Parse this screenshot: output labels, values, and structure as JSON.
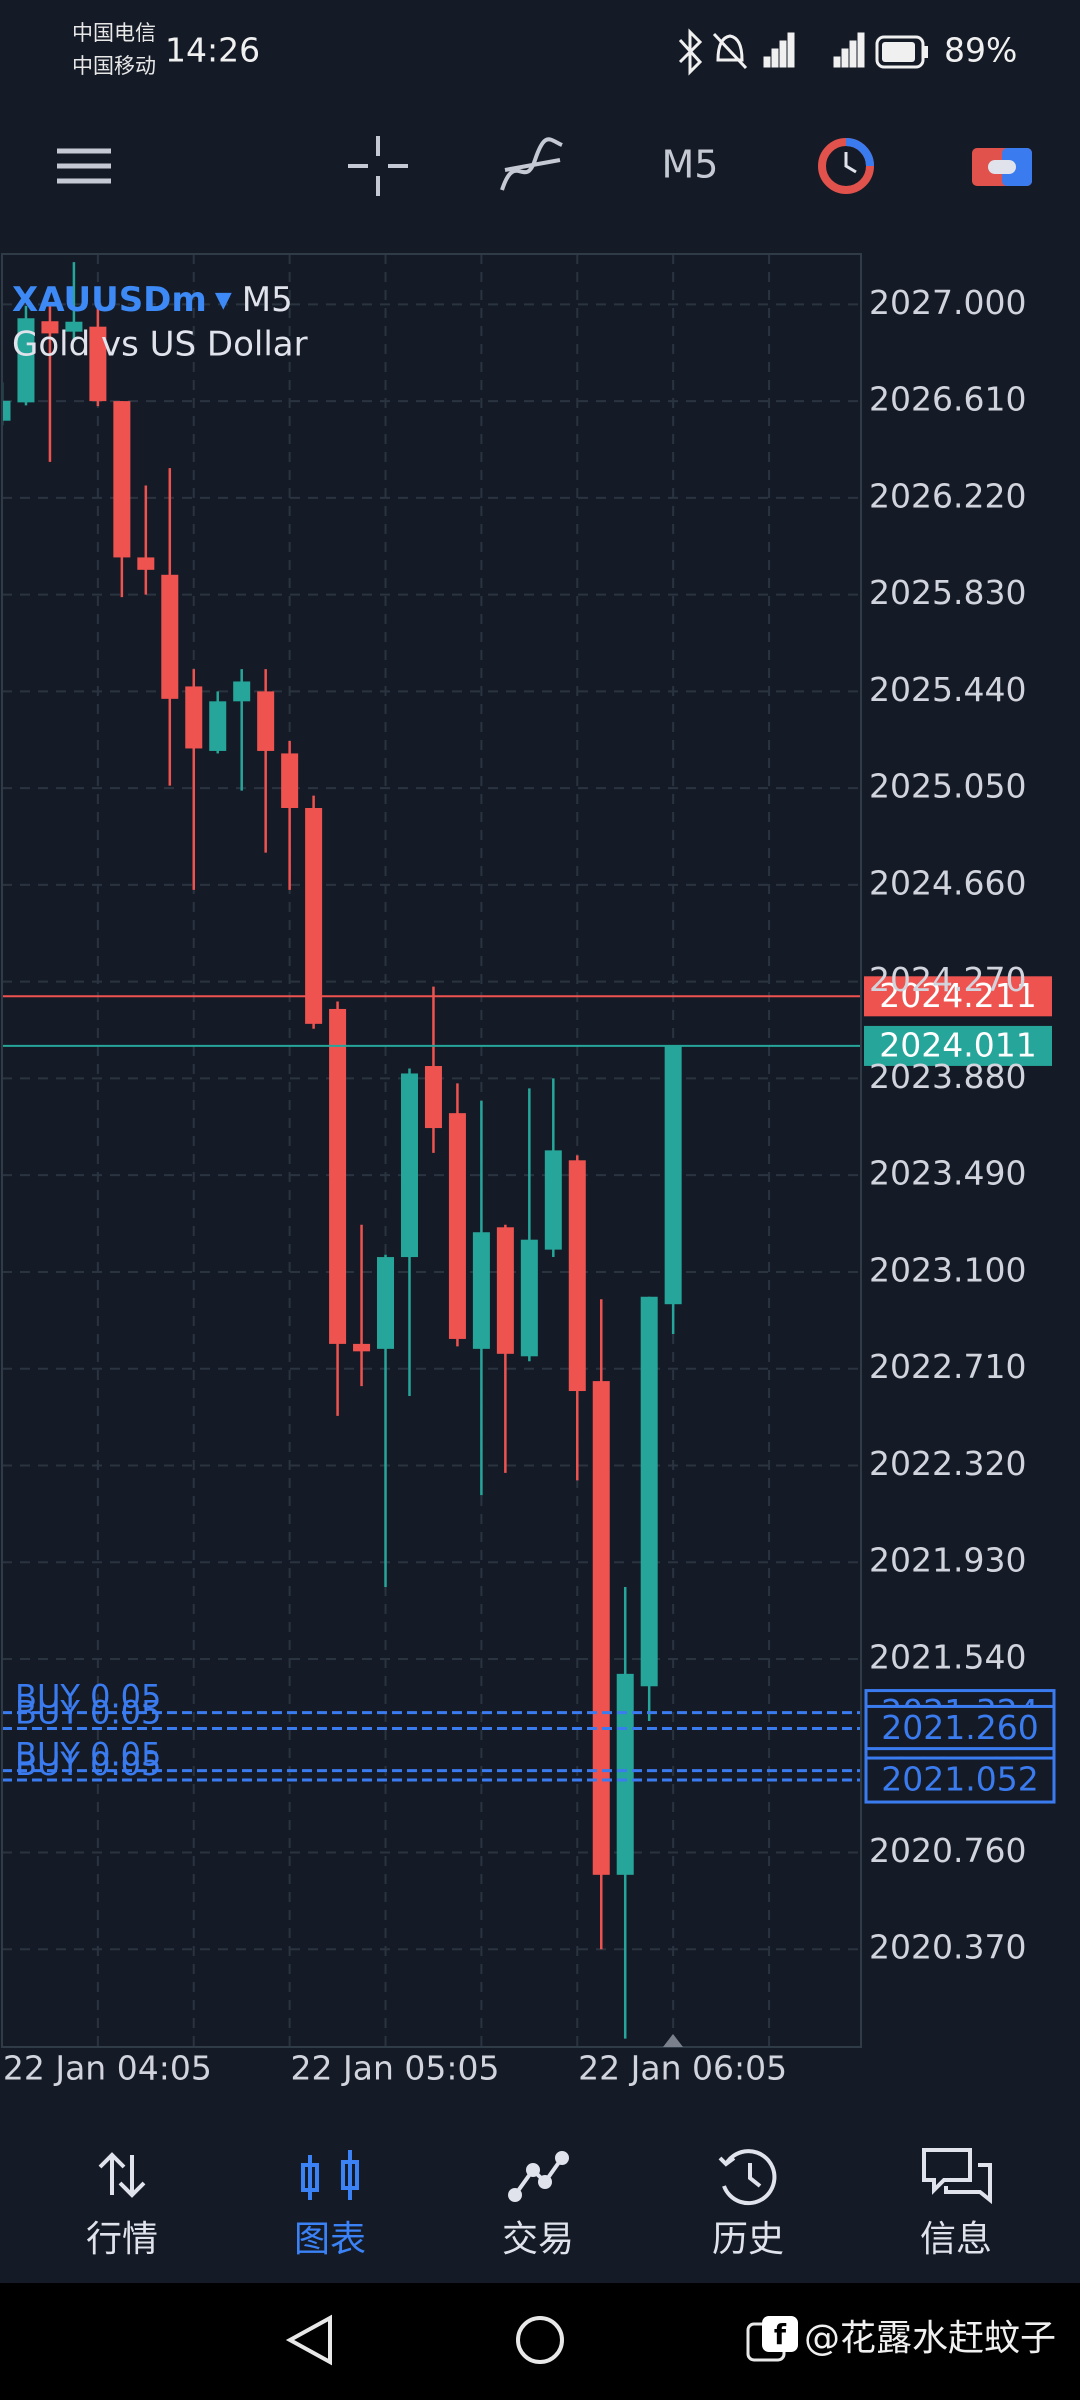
{
  "status_bar": {
    "carrier_1": "中国电信",
    "carrier_2": "中国移动",
    "time": "14:26",
    "battery": "89%"
  },
  "toolbar": {
    "timeframe": "M5"
  },
  "chart_data": {
    "type": "candlestick",
    "symbol": "XAUUSDm",
    "timeframe": "M5",
    "description": "Gold vs US Dollar",
    "categories": [
      null,
      null,
      null,
      null,
      "22 Jan 04:05",
      null,
      null,
      null,
      null,
      null,
      null,
      null,
      null,
      null,
      null,
      null,
      "22 Jan 05:05",
      null,
      null,
      null,
      null,
      null,
      null,
      null,
      null,
      null,
      null,
      null,
      "22 Jan 06:05"
    ],
    "open": [
      2026.531,
      2026.605,
      2026.932,
      2026.89,
      2026.91,
      2026.61,
      2025.98,
      2025.91,
      2025.46,
      2025.2,
      2025.4,
      2025.44,
      2025.19,
      2024.97,
      2024.16,
      2022.81,
      2022.79,
      2023.16,
      2023.93,
      2023.74,
      2022.79,
      2023.28,
      2022.76,
      2023.19,
      2023.55,
      2022.66,
      2020.67,
      2021.43,
      2022.97
    ],
    "high": [
      2026.686,
      2026.994,
      2026.994,
      2027.17,
      2026.99,
      2026.61,
      2026.27,
      2026.34,
      2025.53,
      2025.44,
      2025.53,
      2025.53,
      2025.24,
      2025.02,
      2024.19,
      2023.29,
      2023.17,
      2023.92,
      2024.25,
      2023.86,
      2023.79,
      2023.29,
      2023.84,
      2023.88,
      2023.57,
      2022.99,
      2021.83,
      2023.0,
      2024.011
    ],
    "low": [
      2026.513,
      2026.593,
      2026.365,
      2026.85,
      2026.59,
      2025.82,
      2025.83,
      2025.06,
      2024.64,
      2025.19,
      2025.04,
      2024.79,
      2024.64,
      2024.08,
      2022.52,
      2022.64,
      2021.83,
      2022.6,
      2023.58,
      2022.8,
      2022.2,
      2022.29,
      2022.74,
      2023.16,
      2022.26,
      2020.37,
      2020.01,
      2021.29,
      2022.85
    ],
    "close": [
      2026.611,
      2026.944,
      2026.883,
      2026.93,
      2026.61,
      2025.98,
      2025.93,
      2025.41,
      2025.21,
      2025.4,
      2025.48,
      2025.2,
      2024.97,
      2024.1,
      2022.81,
      2022.78,
      2023.16,
      2023.9,
      2023.68,
      2022.83,
      2023.26,
      2022.77,
      2023.23,
      2023.59,
      2022.62,
      2020.67,
      2021.48,
      2023.0,
      2024.011
    ],
    "up_color": "#26a69a",
    "down_color": "#ef5350",
    "ylim": [
      2019.976,
      2027.203
    ],
    "yticks": [
      {
        "value": 2027,
        "label": "2027.000"
      },
      {
        "value": 2026.61,
        "label": "2026.610"
      },
      {
        "value": 2026.22,
        "label": "2026.220"
      },
      {
        "value": 2025.83,
        "label": "2025.830"
      },
      {
        "value": 2025.44,
        "label": "2025.440"
      },
      {
        "value": 2025.05,
        "label": "2025.050"
      },
      {
        "value": 2024.66,
        "label": "2024.660"
      },
      {
        "value": 2024.27,
        "label": "2024.270"
      },
      {
        "value": 2023.88,
        "label": "2023.880"
      },
      {
        "value": 2023.49,
        "label": "2023.490"
      },
      {
        "value": 2023.1,
        "label": "2023.100"
      },
      {
        "value": 2022.71,
        "label": "2022.710"
      },
      {
        "value": 2022.32,
        "label": "2022.320"
      },
      {
        "value": 2021.93,
        "label": "2021.930"
      },
      {
        "value": 2021.54,
        "label": "2021.540"
      },
      {
        "value": 2020.76,
        "label": "2020.760"
      },
      {
        "value": 2020.37,
        "label": "2020.370"
      }
    ],
    "grid": true,
    "bid": 2024.211,
    "bid_color": "#ef5350",
    "ask": 2024.011,
    "ask_color": "#26a69a",
    "order_color": "#3b7bf0",
    "orders": [
      {
        "label": "BUY 0.05",
        "price": 2021.324
      },
      {
        "label": "BUY 0.05",
        "price": {
          "value": 2021.26,
          "label": "2021.260"
        }
      },
      {
        "label": "BUY 0.05",
        "price": 2021.09
      },
      {
        "label": "BUY 0.05",
        "price": 2021.052
      }
    ]
  },
  "bottom_nav": {
    "items": [
      "行情",
      "图表",
      "交易",
      "历史",
      "信息"
    ],
    "active": 1
  },
  "watermark": "@花露水赶蚊子"
}
